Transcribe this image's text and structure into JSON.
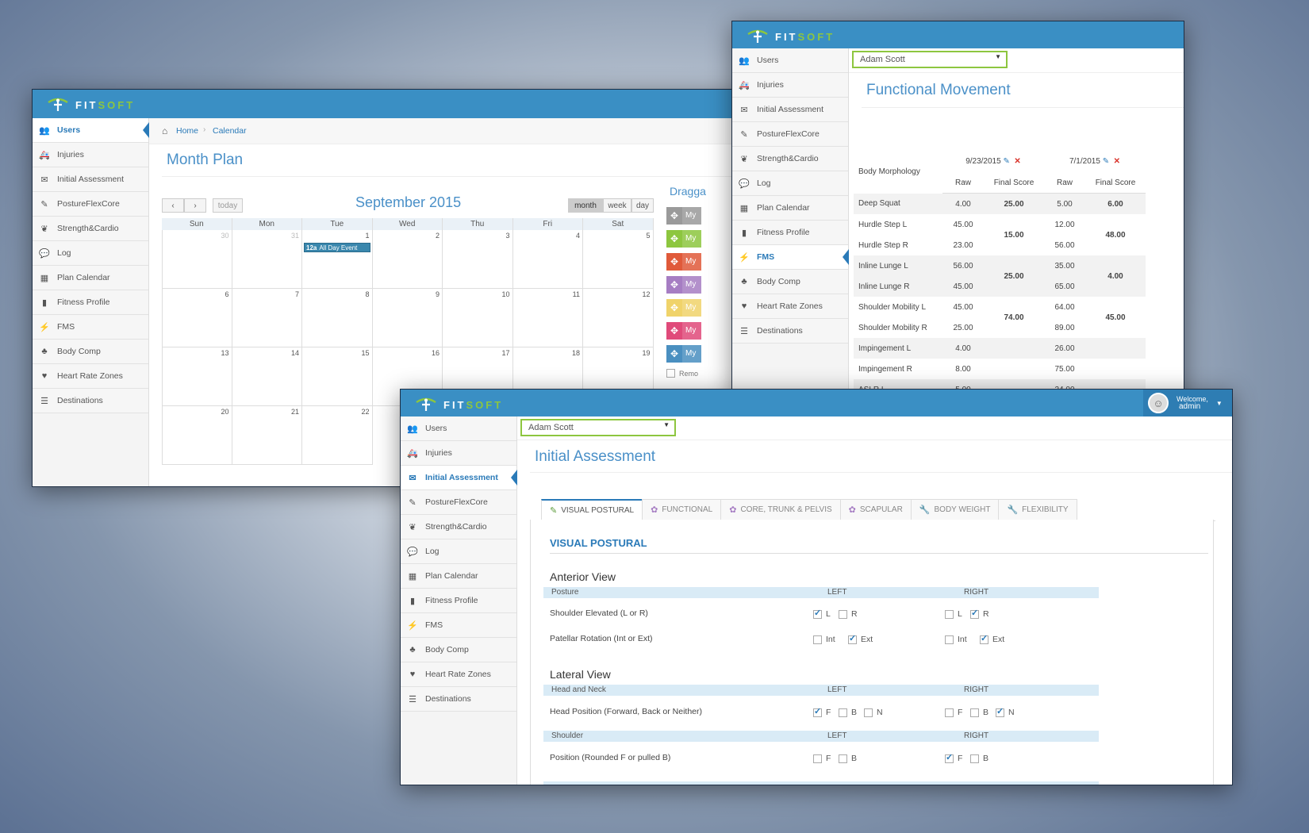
{
  "brand": {
    "part1": "FIT",
    "part2": "SOFT"
  },
  "colors": {
    "topbar": "#3a8fc4",
    "accent": "#2a7ab8",
    "green": "#8dc63f"
  },
  "sidebar": [
    {
      "label": "Users",
      "icon": "users-icon"
    },
    {
      "label": "Injuries",
      "icon": "ambulance-icon"
    },
    {
      "label": "Initial Assessment",
      "icon": "envelope-icon"
    },
    {
      "label": "PostureFlexCore",
      "icon": "edit-icon"
    },
    {
      "label": "Strength&Cardio",
      "icon": "leaf-icon"
    },
    {
      "label": "Log",
      "icon": "comment-icon"
    },
    {
      "label": "Plan Calendar",
      "icon": "calendar-icon"
    },
    {
      "label": "Fitness Profile",
      "icon": "book-icon"
    },
    {
      "label": "FMS",
      "icon": "bolt-icon"
    },
    {
      "label": "Body Comp",
      "icon": "tree-icon"
    },
    {
      "label": "Heart Rate Zones",
      "icon": "heart-icon"
    },
    {
      "label": "Destinations",
      "icon": "list-icon"
    }
  ],
  "calendar_window": {
    "breadcrumb": [
      "Home",
      "Calendar"
    ],
    "title": "Month Plan",
    "month": "September 2015",
    "today_label": "today",
    "view_buttons": [
      "month",
      "week",
      "day"
    ],
    "weekdays": [
      "Sun",
      "Mon",
      "Tue",
      "Wed",
      "Thu",
      "Fri",
      "Sat"
    ],
    "days": [
      "30",
      "31",
      "1",
      "2",
      "3",
      "4",
      "5",
      "6",
      "7",
      "8",
      "9",
      "10",
      "11",
      "12",
      "13",
      "14",
      "15",
      "16",
      "17",
      "18",
      "19",
      "20",
      "21",
      "22"
    ],
    "event": {
      "time": "12a",
      "title": "All Day Event"
    },
    "draggable_title": "Dragga",
    "draggable_label": "My",
    "draggable_colors": [
      "#9a9a9a",
      "#8dc63f",
      "#e05a3a",
      "#a67dc3",
      "#f0d36a",
      "#e04a7a",
      "#4a8fc0"
    ],
    "draggable_check_label": "Remo"
  },
  "fms_window": {
    "user": "Adam Scott",
    "title": "Functional Movement",
    "row_label": "Body Morphology",
    "dates": [
      "9/23/2015",
      "7/1/2015"
    ],
    "columns": [
      "Raw",
      "Final Score",
      "Raw",
      "Final Score"
    ],
    "rows": [
      {
        "name": "Deep Squat",
        "raw1": "4.00",
        "raw2": "5.00"
      },
      {
        "name": "Hurdle Step L",
        "raw1": "45.00",
        "raw2": "12.00"
      },
      {
        "name": "Hurdle Step R",
        "raw1": "23.00",
        "raw2": "56.00"
      },
      {
        "name": "Inline Lunge L",
        "raw1": "56.00",
        "raw2": "35.00"
      },
      {
        "name": "Inline Lunge R",
        "raw1": "45.00",
        "raw2": "65.00"
      },
      {
        "name": "Shoulder Mobility L",
        "raw1": "45.00",
        "raw2": "64.00"
      },
      {
        "name": "Shoulder Mobility R",
        "raw1": "25.00",
        "raw2": "89.00"
      },
      {
        "name": "Impingement L",
        "raw1": "4.00",
        "raw2": "26.00"
      },
      {
        "name": "Impingement R",
        "raw1": "8.00",
        "raw2": "75.00"
      },
      {
        "name": "ASLR L",
        "raw1": "5.00",
        "raw2": "24.00"
      }
    ],
    "finals1": [
      "25.00",
      "15.00",
      "25.00",
      "74.00"
    ],
    "finals2": [
      "6.00",
      "48.00",
      "4.00",
      "45.00"
    ]
  },
  "assessment_window": {
    "welcome": "Welcome,",
    "username": "admin",
    "user": "Adam Scott",
    "title": "Initial Assessment",
    "tabs": [
      "VISUAL POSTURAL",
      "FUNCTIONAL",
      "CORE, TRUNK & PELVIS",
      "SCAPULAR",
      "BODY WEIGHT",
      "FLEXIBILITY"
    ],
    "section_title": "VISUAL POSTURAL",
    "anterior": {
      "heading": "Anterior View",
      "header": {
        "col": "Posture",
        "left": "LEFT",
        "right": "RIGHT"
      },
      "q1": {
        "label": "Shoulder Elevated (L or R)",
        "opts": [
          "L",
          "R"
        ],
        "left_checked": [
          true,
          false
        ],
        "right_checked": [
          false,
          true
        ]
      },
      "q2": {
        "label": "Patellar Rotation (Int or Ext)",
        "opts": [
          "Int",
          "Ext"
        ],
        "left_checked": [
          false,
          true
        ],
        "right_checked": [
          false,
          true
        ]
      }
    },
    "lateral": {
      "heading": "Lateral View",
      "header1": {
        "col": "Head and Neck",
        "left": "LEFT",
        "right": "RIGHT"
      },
      "q1": {
        "label": "Head Position (Forward, Back or Neither)",
        "opts": [
          "F",
          "B",
          "N"
        ],
        "left_checked": [
          true,
          false,
          false
        ],
        "right_checked": [
          false,
          false,
          true
        ]
      },
      "header2": {
        "col": "Shoulder",
        "left": "LEFT",
        "right": "RIGHT"
      },
      "q2": {
        "label": "Position (Rounded F or pulled B)",
        "opts": [
          "F",
          "B"
        ],
        "left_checked": [
          false,
          false
        ],
        "right_checked": [
          true,
          false
        ]
      }
    }
  }
}
